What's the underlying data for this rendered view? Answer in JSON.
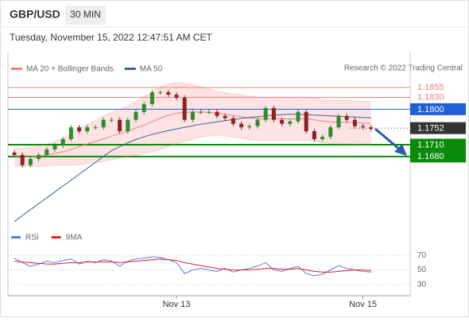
{
  "header": {
    "symbol": "GBP/USD",
    "timeframe": "30 MIN",
    "timestamp": "Tuesday, November 15, 2022 12:47:51 AM CET"
  },
  "chart_data": [
    {
      "type": "candlestick",
      "source": "Research © 2022 Trading Central",
      "categories": [
        null,
        null,
        null,
        null,
        null,
        null,
        null,
        null,
        null,
        null,
        null,
        null,
        null,
        null,
        null,
        null,
        null,
        null,
        null,
        null,
        "Nov 13",
        null,
        null,
        null,
        null,
        null,
        null,
        null,
        null,
        null,
        null,
        null,
        null,
        null,
        null,
        null,
        null,
        null,
        null,
        null,
        null,
        null,
        null,
        "Nov 15",
        null
      ],
      "open": [
        1.169,
        1.1684,
        1.1658,
        1.1674,
        1.1684,
        1.1698,
        1.1708,
        1.1724,
        1.1754,
        1.1744,
        1.1754,
        1.1754,
        1.1773,
        1.1773,
        1.1744,
        1.1773,
        1.1793,
        1.1813,
        1.1843,
        1.1843,
        1.1837,
        1.1829,
        1.1773,
        1.1793,
        1.1793,
        1.1793,
        1.1783,
        1.1777,
        1.1763,
        1.1754,
        1.1757,
        1.1773,
        1.1803,
        1.1773,
        1.1763,
        1.1769,
        1.1793,
        1.1744,
        1.1724,
        1.173,
        1.1754,
        1.1783,
        1.1773,
        1.1757,
        1.1754
      ],
      "high": [
        1.1696,
        1.169,
        1.168,
        1.169,
        1.1704,
        1.1714,
        1.173,
        1.176,
        1.176,
        1.176,
        1.176,
        1.1779,
        1.1779,
        1.1779,
        1.1779,
        1.1799,
        1.1819,
        1.1849,
        1.1849,
        1.1849,
        1.1843,
        1.1835,
        1.1799,
        1.1799,
        1.1799,
        1.1799,
        1.1789,
        1.1783,
        1.1769,
        1.1763,
        1.1779,
        1.1809,
        1.1809,
        1.1779,
        1.1775,
        1.1799,
        1.1799,
        1.175,
        1.1736,
        1.176,
        1.1789,
        1.1789,
        1.1779,
        1.1763,
        1.176
      ],
      "low": [
        1.1678,
        1.1652,
        1.1652,
        1.1668,
        1.1678,
        1.1692,
        1.1702,
        1.1718,
        1.1738,
        1.1738,
        1.1748,
        1.1748,
        1.1767,
        1.1738,
        1.1738,
        1.1767,
        1.1787,
        1.1807,
        1.1837,
        1.1831,
        1.1823,
        1.1767,
        1.1767,
        1.1787,
        1.1787,
        1.1777,
        1.1771,
        1.1757,
        1.1748,
        1.1748,
        1.1751,
        1.1767,
        1.1767,
        1.1757,
        1.1757,
        1.1763,
        1.1738,
        1.1718,
        1.1718,
        1.1724,
        1.1748,
        1.1767,
        1.1751,
        1.1748,
        1.1744
      ],
      "close": [
        1.1684,
        1.1658,
        1.1674,
        1.1684,
        1.1698,
        1.1708,
        1.1724,
        1.1754,
        1.1744,
        1.1754,
        1.1754,
        1.1773,
        1.1773,
        1.1744,
        1.1773,
        1.1793,
        1.1813,
        1.1843,
        1.1843,
        1.1837,
        1.1829,
        1.1773,
        1.1793,
        1.1793,
        1.1793,
        1.1783,
        1.1777,
        1.1763,
        1.1754,
        1.1757,
        1.1773,
        1.1803,
        1.1773,
        1.1763,
        1.1769,
        1.1793,
        1.1744,
        1.1724,
        1.173,
        1.1754,
        1.1783,
        1.1773,
        1.1757,
        1.1754,
        1.175
      ],
      "up_color": "#2e8b2e",
      "down_color": "#8b2323",
      "overlays": [
        {
          "name": "MA 20 + Bollinger Bands",
          "color": "#f08080",
          "band_color": "#fde3e3",
          "values": [
            1.1678,
            1.1678,
            1.1679,
            1.1681,
            1.1684,
            1.1688,
            1.1692,
            1.1698,
            1.1705,
            1.1712,
            1.1718,
            1.1725,
            1.1732,
            1.1738,
            1.1744,
            1.1752,
            1.176,
            1.1768,
            1.1777,
            1.1785,
            1.179,
            1.1792,
            1.1793,
            1.1793,
            1.1792,
            1.179,
            1.1787,
            1.1784,
            1.1781,
            1.1778,
            1.1776,
            1.1775,
            1.1776,
            1.1776,
            1.1775,
            1.1776,
            1.1776,
            1.1773,
            1.177,
            1.1768,
            1.1767,
            1.1767,
            1.1766,
            1.1765,
            1.1764
          ],
          "upper": [
            1.17,
            1.17,
            1.1703,
            1.1707,
            1.1712,
            1.1718,
            1.1726,
            1.1738,
            1.1751,
            1.1762,
            1.1772,
            1.1783,
            1.1792,
            1.18,
            1.1808,
            1.182,
            1.1832,
            1.1844,
            1.1857,
            1.1865,
            1.1868,
            1.1866,
            1.1863,
            1.1857,
            1.1852,
            1.1845,
            1.1842,
            1.1839,
            1.1836,
            1.1833,
            1.1831,
            1.183,
            1.1831,
            1.1831,
            1.183,
            1.1831,
            1.1831,
            1.1828,
            1.1825,
            1.1823,
            1.1822,
            1.1822,
            1.1821,
            1.182,
            1.1819
          ],
          "lower": [
            1.1656,
            1.1656,
            1.1655,
            1.1655,
            1.1656,
            1.1658,
            1.1658,
            1.1658,
            1.1659,
            1.1662,
            1.1664,
            1.1667,
            1.1672,
            1.1676,
            1.168,
            1.1684,
            1.1688,
            1.1692,
            1.1697,
            1.1705,
            1.1712,
            1.1718,
            1.1723,
            1.1729,
            1.1732,
            1.1735,
            1.1732,
            1.1729,
            1.1726,
            1.1723,
            1.1721,
            1.172,
            1.1721,
            1.1721,
            1.172,
            1.1721,
            1.1721,
            1.1718,
            1.1715,
            1.1713,
            1.1712,
            1.1712,
            1.1711,
            1.171,
            1.1709
          ]
        },
        {
          "name": "MA 50",
          "color": "#3a5f9f",
          "values": [
            1.1515,
            1.153,
            1.1545,
            1.156,
            1.1575,
            1.159,
            1.1605,
            1.162,
            1.1635,
            1.165,
            1.1665,
            1.168,
            1.1695,
            1.1705,
            1.1715,
            1.1723,
            1.173,
            1.1736,
            1.1741,
            1.1746,
            1.175,
            1.1754,
            1.1758,
            1.1762,
            1.1765,
            1.1768,
            1.1771,
            1.1774,
            1.1777,
            1.1779,
            1.1781,
            1.1783,
            1.1785,
            1.1786,
            1.1787,
            1.1787,
            1.1786,
            1.1785,
            1.1784,
            1.1783,
            1.1782,
            1.1781,
            1.178,
            1.1779,
            1.1778
          ]
        }
      ],
      "levels": [
        {
          "value": 1.1855,
          "label": "1.1855",
          "color": "#f08080",
          "style": "line",
          "label_style": "text"
        },
        {
          "value": 1.183,
          "label": "1.1830",
          "color": "#f08080",
          "style": "line",
          "label_style": "text"
        },
        {
          "value": 1.18,
          "label": "1.1800",
          "color": "#1f5fd6",
          "style": "line",
          "label_style": "box"
        },
        {
          "value": 1.1752,
          "label": "1.1752",
          "color": "#333333",
          "style": "dotted",
          "label_style": "box"
        },
        {
          "value": 1.171,
          "label": "1.1710",
          "color": "#0a8a0a",
          "style": "thick",
          "label_style": "box"
        },
        {
          "value": 1.168,
          "label": "1.1680",
          "color": "#0a8a0a",
          "style": "thick",
          "label_style": "box"
        }
      ],
      "ylim": [
        1.15,
        1.194
      ]
    },
    {
      "type": "line",
      "series": [
        {
          "name": "RSI",
          "color": "#5b7fd6",
          "values": [
            66,
            60,
            55,
            58,
            62,
            60,
            63,
            65,
            58,
            62,
            60,
            64,
            62,
            55,
            62,
            65,
            66,
            68,
            67,
            64,
            60,
            45,
            50,
            52,
            50,
            48,
            52,
            47,
            50,
            52,
            55,
            60,
            50,
            48,
            52,
            55,
            45,
            42,
            44,
            50,
            56,
            52,
            50,
            48,
            47
          ]
        },
        {
          "name": "9MA",
          "color": "#e02020",
          "values": [
            62,
            61,
            60,
            59,
            58,
            58,
            59,
            60,
            60,
            61,
            61,
            61,
            61,
            60,
            61,
            62,
            63,
            64,
            65,
            64,
            63,
            60,
            58,
            56,
            54,
            52,
            51,
            50,
            50,
            50,
            51,
            52,
            52,
            51,
            51,
            52,
            50,
            48,
            47,
            47,
            48,
            49,
            50,
            50,
            49
          ]
        }
      ],
      "ylim": [
        20,
        80
      ],
      "yticks": [
        70,
        50,
        30
      ]
    }
  ]
}
